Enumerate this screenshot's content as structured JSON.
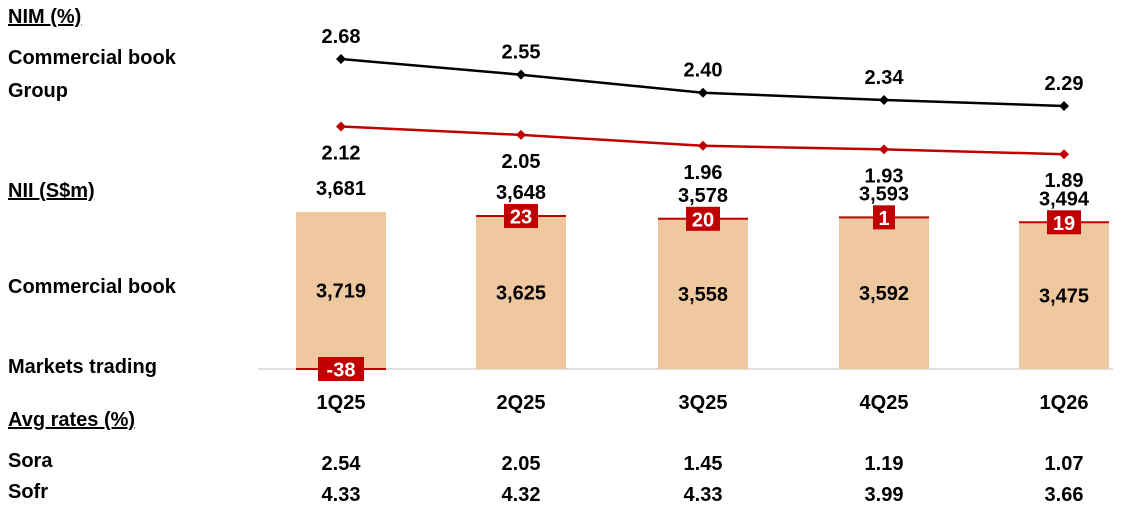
{
  "colors": {
    "black_line": "#000000",
    "red_line": "#c00000",
    "bar_fill": "#f0c8a0",
    "trading_box": "#c00000",
    "axis": "#bfbfbf"
  },
  "labels": {
    "nim_title": "NIM (%)",
    "nim_commercial": "Commercial book",
    "nim_group": "Group",
    "nii_title": "NII (S$m)",
    "nii_commercial": "Commercial book",
    "nii_markets": "Markets trading",
    "avg_rates_title": "Avg rates (%)",
    "sora": "Sora",
    "sofr": "Sofr"
  },
  "chart_data": [
    {
      "type": "line",
      "title": "NIM (%)",
      "x": [
        "1Q25",
        "2Q25",
        "3Q25",
        "4Q25",
        "1Q26"
      ],
      "series": [
        {
          "name": "Commercial book",
          "values": [
            2.68,
            2.55,
            2.4,
            2.34,
            2.29
          ]
        },
        {
          "name": "Group",
          "values": [
            2.12,
            2.05,
            1.96,
            1.93,
            1.89
          ]
        }
      ]
    },
    {
      "type": "bar",
      "title": "NII (S$m)",
      "categories": [
        "1Q25",
        "2Q25",
        "3Q25",
        "4Q25",
        "1Q26"
      ],
      "totals": [
        "3,681",
        "3,648",
        "3,578",
        "3,593",
        "3,494"
      ],
      "series": [
        {
          "name": "Commercial book",
          "values": [
            3719,
            3625,
            3558,
            3592,
            3475
          ],
          "labels": [
            "3,719",
            "3,625",
            "3,558",
            "3,592",
            "3,475"
          ]
        },
        {
          "name": "Markets trading",
          "values": [
            -38,
            23,
            20,
            1,
            19
          ],
          "labels": [
            "-38",
            "23",
            "20",
            "1",
            "19"
          ]
        }
      ]
    },
    {
      "type": "table",
      "title": "Avg rates (%)",
      "columns": [
        "1Q25",
        "2Q25",
        "3Q25",
        "4Q25",
        "1Q26"
      ],
      "rows": [
        {
          "name": "Sora",
          "values": [
            "2.54",
            "2.05",
            "1.45",
            "1.19",
            "1.07"
          ]
        },
        {
          "name": "Sofr",
          "values": [
            "4.33",
            "4.32",
            "4.33",
            "3.99",
            "3.66"
          ]
        }
      ]
    }
  ]
}
